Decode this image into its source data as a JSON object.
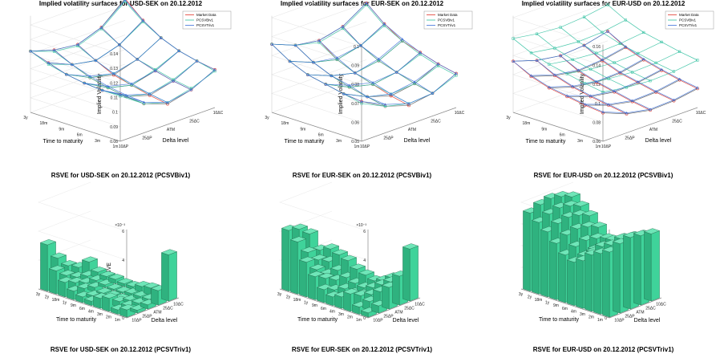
{
  "bottom_titles": [
    "RSVE for USD-SEK on 20.12.2012 (PCSVTriv1)",
    "RSVE for EUR-SEK on 20.12.2012 (PCSVTriv1)",
    "RSVE for EUR-USD on 20.12.2012 (PCSVTriv1)"
  ],
  "colors": {
    "market": "#e0352b",
    "pcsvbiv1": "#2fbf9f",
    "pcsvtriv1": "#3a6fd8",
    "bar": "#3fd39a",
    "mesh_dark": "#555555",
    "axes": "#888888"
  },
  "chart_data": [
    {
      "type": "surface3d",
      "title": "Implied volatility surfaces for USD-SEK on 20.12.2012",
      "xlabel": "Time to maturity",
      "ylabel": "Delta level",
      "zlabel": "Implied Volatility",
      "x_ticks": [
        "1m",
        "3m",
        "6m",
        "9m",
        "18m",
        "3y"
      ],
      "y_ticks": [
        "10ΔP",
        "25ΔP",
        "ATM",
        "25ΔC",
        "10ΔC"
      ],
      "z_ticks": [
        "0.08",
        "0.09",
        "0.1",
        "0.11",
        "0.12",
        "0.13",
        "0.14"
      ],
      "zlim": [
        0.08,
        0.145
      ],
      "legend": [
        "Market Data",
        "PCSVBiv1",
        "PCSVTriv1"
      ],
      "legend_position": "top-right",
      "series": [
        {
          "name": "Market Data",
          "values": [
            [
              0.112,
              0.1,
              0.094,
              0.098,
              0.106
            ],
            [
              0.111,
              0.101,
              0.096,
              0.1,
              0.108
            ],
            [
              0.112,
              0.103,
              0.099,
              0.103,
              0.111
            ],
            [
              0.114,
              0.106,
              0.102,
              0.107,
              0.116
            ],
            [
              0.118,
              0.111,
              0.108,
              0.113,
              0.124
            ],
            [
              0.122,
              0.117,
              0.115,
              0.121,
              0.135
            ]
          ]
        },
        {
          "name": "PCSVBiv1",
          "values": [
            [
              0.111,
              0.1,
              0.095,
              0.099,
              0.105
            ],
            [
              0.111,
              0.101,
              0.097,
              0.101,
              0.108
            ],
            [
              0.112,
              0.103,
              0.099,
              0.104,
              0.111
            ],
            [
              0.114,
              0.106,
              0.103,
              0.107,
              0.116
            ],
            [
              0.117,
              0.111,
              0.108,
              0.113,
              0.123
            ],
            [
              0.122,
              0.116,
              0.114,
              0.12,
              0.133
            ]
          ]
        },
        {
          "name": "PCSVTriv1",
          "values": [
            [
              0.112,
              0.101,
              0.095,
              0.098,
              0.106
            ],
            [
              0.111,
              0.102,
              0.097,
              0.1,
              0.108
            ],
            [
              0.112,
              0.104,
              0.1,
              0.103,
              0.111
            ],
            [
              0.114,
              0.107,
              0.103,
              0.107,
              0.116
            ],
            [
              0.118,
              0.111,
              0.108,
              0.113,
              0.124
            ],
            [
              0.122,
              0.117,
              0.115,
              0.121,
              0.134
            ]
          ]
        }
      ]
    },
    {
      "type": "surface3d",
      "title": "Implied volatility surfaces for EUR-SEK on 20.12.2012",
      "xlabel": "Time to maturity",
      "ylabel": "Delta level",
      "zlabel": "Implied Volatility",
      "x_ticks": [
        "1m",
        "3m",
        "6m",
        "9m",
        "18m",
        "3y"
      ],
      "y_ticks": [
        "10ΔP",
        "25ΔP",
        "ATM",
        "25ΔC",
        "10ΔC"
      ],
      "z_ticks": [
        "0.05",
        "0.06",
        "0.07",
        "0.08",
        "0.09",
        "0.1"
      ],
      "zlim": [
        0.05,
        0.1
      ],
      "legend": [
        "Market Data",
        "PCSVBiv1",
        "PCSVTriv1"
      ],
      "legend_position": "top-right",
      "series": [
        {
          "name": "Market Data",
          "values": [
            [
              0.071,
              0.064,
              0.06,
              0.062,
              0.068
            ],
            [
              0.072,
              0.066,
              0.062,
              0.064,
              0.07
            ],
            [
              0.074,
              0.068,
              0.065,
              0.067,
              0.073
            ],
            [
              0.076,
              0.071,
              0.068,
              0.07,
              0.076
            ],
            [
              0.08,
              0.075,
              0.072,
              0.075,
              0.082
            ],
            [
              0.086,
              0.081,
              0.079,
              0.082,
              0.09
            ]
          ]
        },
        {
          "name": "PCSVBiv1",
          "values": [
            [
              0.07,
              0.064,
              0.061,
              0.062,
              0.067
            ],
            [
              0.072,
              0.066,
              0.063,
              0.064,
              0.069
            ],
            [
              0.074,
              0.068,
              0.065,
              0.067,
              0.072
            ],
            [
              0.076,
              0.071,
              0.068,
              0.07,
              0.076
            ],
            [
              0.08,
              0.075,
              0.072,
              0.075,
              0.081
            ],
            [
              0.086,
              0.081,
              0.078,
              0.081,
              0.089
            ]
          ]
        },
        {
          "name": "PCSVTriv1",
          "values": [
            [
              0.071,
              0.065,
              0.061,
              0.062,
              0.068
            ],
            [
              0.072,
              0.066,
              0.063,
              0.065,
              0.07
            ],
            [
              0.074,
              0.069,
              0.066,
              0.067,
              0.073
            ],
            [
              0.076,
              0.071,
              0.068,
              0.071,
              0.077
            ],
            [
              0.08,
              0.075,
              0.073,
              0.075,
              0.082
            ],
            [
              0.086,
              0.081,
              0.079,
              0.082,
              0.09
            ]
          ]
        }
      ]
    },
    {
      "type": "surface3d",
      "title": "Implied volatility surfaces for EUR-USD on 20.12.2012",
      "xlabel": "Time to maturity",
      "ylabel": "Delta level",
      "zlabel": "Implied Volatility",
      "x_ticks": [
        "1m",
        "3m",
        "6m",
        "9m",
        "18m",
        "3y"
      ],
      "y_ticks": [
        "10ΔP",
        "25ΔP",
        "ATM",
        "25ΔC",
        "10ΔC"
      ],
      "z_ticks": [
        "0.06",
        "0.08",
        "0.1",
        "0.12",
        "0.14",
        "0.16"
      ],
      "zlim": [
        0.06,
        0.16
      ],
      "legend": [
        "Market Data",
        "PCSVBiv1",
        "PCSVTriv1"
      ],
      "legend_position": "top-right",
      "series": [
        {
          "name": "Market Data",
          "values": [
            [
              0.09,
              0.08,
              0.075,
              0.076,
              0.08
            ],
            [
              0.092,
              0.083,
              0.078,
              0.079,
              0.083
            ],
            [
              0.095,
              0.086,
              0.082,
              0.083,
              0.087
            ],
            [
              0.098,
              0.09,
              0.086,
              0.087,
              0.092
            ],
            [
              0.104,
              0.096,
              0.092,
              0.094,
              0.099
            ],
            [
              0.114,
              0.106,
              0.102,
              0.104,
              0.11
            ]
          ]
        },
        {
          "name": "PCSVBiv1",
          "values": [
            [
              0.112,
              0.108,
              0.106,
              0.107,
              0.11
            ],
            [
              0.115,
              0.111,
              0.109,
              0.11,
              0.113
            ],
            [
              0.119,
              0.115,
              0.113,
              0.114,
              0.117
            ],
            [
              0.123,
              0.119,
              0.117,
              0.118,
              0.121
            ],
            [
              0.129,
              0.125,
              0.123,
              0.124,
              0.128
            ],
            [
              0.138,
              0.134,
              0.132,
              0.134,
              0.138
            ]
          ]
        },
        {
          "name": "PCSVTriv1",
          "values": [
            [
              0.091,
              0.081,
              0.076,
              0.077,
              0.081
            ],
            [
              0.093,
              0.084,
              0.079,
              0.08,
              0.084
            ],
            [
              0.096,
              0.087,
              0.083,
              0.084,
              0.088
            ],
            [
              0.099,
              0.091,
              0.087,
              0.088,
              0.093
            ],
            [
              0.105,
              0.097,
              0.093,
              0.095,
              0.1
            ],
            [
              0.114,
              0.106,
              0.102,
              0.104,
              0.11
            ]
          ]
        }
      ]
    },
    {
      "type": "bar3d",
      "title": "RSVE for USD-SEK on 20.12.2012 (PCSVBiv1)",
      "xlabel": "Time to maturity",
      "ylabel": "Delta level",
      "zlabel": "RSVE",
      "z_exponent": "×10⁻³",
      "x_ticks": [
        "1m",
        "2m",
        "3m",
        "4m",
        "6m",
        "9m",
        "1y",
        "18m",
        "2y",
        "3y"
      ],
      "y_ticks": [
        "10ΔP",
        "25ΔP",
        "ATM",
        "25ΔC",
        "10ΔC"
      ],
      "z_ticks": [
        "0",
        "2",
        "4",
        "6"
      ],
      "zlim": [
        0,
        6
      ],
      "values": [
        [
          0.5,
          0.2,
          0.3,
          1.0,
          3.2
        ],
        [
          0.3,
          0.3,
          0.2,
          0.2,
          0.4
        ],
        [
          0.9,
          0.4,
          0.2,
          0.2,
          0.5
        ],
        [
          0.7,
          0.3,
          0.1,
          0.2,
          0.4
        ],
        [
          0.3,
          0.2,
          0.1,
          0.1,
          0.2
        ],
        [
          0.4,
          0.2,
          0.1,
          0.1,
          0.2
        ],
        [
          0.6,
          0.5,
          0.3,
          0.2,
          0.3
        ],
        [
          1.0,
          0.7,
          0.4,
          0.3,
          0.3
        ],
        [
          1.6,
          1.0,
          0.6,
          0.4,
          0.4
        ],
        [
          3.2,
          2.0,
          1.2,
          0.8,
          0.9
        ]
      ]
    },
    {
      "type": "bar3d",
      "title": "RSVE for EUR-SEK on 20.12.2012 (PCSVBiv1)",
      "xlabel": "Time to maturity",
      "ylabel": "Delta level",
      "zlabel": "RSVE",
      "z_exponent": "×10⁻³",
      "x_ticks": [
        "1m",
        "2m",
        "3m",
        "4m",
        "6m",
        "9m",
        "1y",
        "18m",
        "2y",
        "3y"
      ],
      "y_ticks": [
        "10ΔP",
        "25ΔP",
        "ATM",
        "25ΔC",
        "10ΔC"
      ],
      "z_ticks": [
        "0",
        "2",
        "4",
        "6"
      ],
      "zlim": [
        0,
        6
      ],
      "values": [
        [
          0.3,
          0.5,
          1.5,
          2.0,
          3.6
        ],
        [
          0.5,
          0.6,
          1.0,
          1.4,
          1.0
        ],
        [
          1.2,
          0.8,
          0.6,
          1.0,
          1.2
        ],
        [
          0.8,
          0.5,
          0.4,
          0.6,
          0.8
        ],
        [
          0.6,
          0.3,
          0.3,
          0.4,
          0.6
        ],
        [
          0.9,
          0.6,
          0.4,
          0.5,
          0.8
        ],
        [
          1.6,
          1.2,
          0.8,
          0.7,
          1.0
        ],
        [
          2.4,
          1.6,
          1.0,
          1.0,
          1.4
        ],
        [
          3.6,
          2.6,
          1.8,
          1.4,
          1.6
        ],
        [
          4.2,
          4.0,
          3.4,
          2.0,
          1.8
        ]
      ]
    },
    {
      "type": "bar3d",
      "title": "RSVE for EUR-USD on 20.12.2012 (PCSVBiv1)",
      "xlabel": "Time to maturity",
      "ylabel": "Delta level",
      "zlabel": "RSVE",
      "x_ticks": [
        "1m",
        "2m",
        "3m",
        "4m",
        "6m",
        "9m",
        "1y",
        "18m",
        "2y",
        "3y"
      ],
      "y_ticks": [
        "10ΔP",
        "25ΔP",
        "ATM",
        "25ΔC",
        "10ΔC"
      ],
      "z_ticks": [
        "0",
        "0.1",
        "0.2",
        "0.3",
        "0.4"
      ],
      "zlim": [
        0,
        0.4
      ],
      "values": [
        [
          0.3,
          0.32,
          0.33,
          0.32,
          0.31
        ],
        [
          0.28,
          0.3,
          0.31,
          0.3,
          0.29
        ],
        [
          0.26,
          0.28,
          0.29,
          0.28,
          0.27
        ],
        [
          0.22,
          0.24,
          0.25,
          0.24,
          0.22
        ],
        [
          0.2,
          0.21,
          0.22,
          0.21,
          0.2
        ],
        [
          0.22,
          0.24,
          0.25,
          0.24,
          0.22
        ],
        [
          0.26,
          0.28,
          0.29,
          0.28,
          0.26
        ],
        [
          0.3,
          0.32,
          0.33,
          0.32,
          0.3
        ],
        [
          0.33,
          0.35,
          0.36,
          0.35,
          0.33
        ],
        [
          0.36,
          0.38,
          0.39,
          0.38,
          0.36
        ]
      ]
    }
  ]
}
